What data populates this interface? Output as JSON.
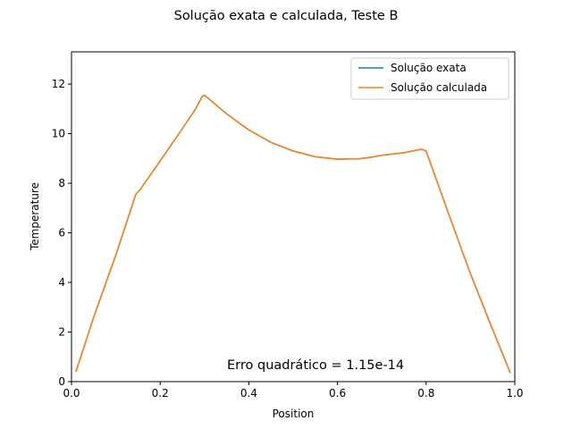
{
  "chart_data": {
    "type": "line",
    "title": "Solução exata e calculada, Teste B",
    "xlabel": "Position",
    "ylabel": "Temperature",
    "xlim": [
      0.0,
      1.0
    ],
    "ylim": [
      0.0,
      13.3
    ],
    "xticks": [
      0.0,
      0.2,
      0.4,
      0.6,
      0.8,
      1.0
    ],
    "xtick_labels": [
      "0.0",
      "0.2",
      "0.4",
      "0.6",
      "0.8",
      "1.0"
    ],
    "yticks": [
      0,
      2,
      4,
      6,
      8,
      10,
      12
    ],
    "ytick_labels": [
      "0",
      "2",
      "4",
      "6",
      "8",
      "10",
      "12"
    ],
    "grid": false,
    "legend_position": "top-right",
    "annotation": "Erro quadrático = 1.15e-14",
    "x": [
      0.01,
      0.05,
      0.1,
      0.145,
      0.155,
      0.2,
      0.25,
      0.28,
      0.295,
      0.3,
      0.31,
      0.35,
      0.4,
      0.45,
      0.5,
      0.55,
      0.6,
      0.65,
      0.68,
      0.7,
      0.72,
      0.75,
      0.78,
      0.79,
      0.8,
      0.85,
      0.9,
      0.95,
      0.99
    ],
    "series": [
      {
        "name": "Solução exata",
        "color": "#1f77b4",
        "values": [
          0.4,
          2.6,
          5.1,
          7.55,
          7.75,
          8.9,
          10.2,
          11.0,
          11.5,
          11.55,
          11.4,
          10.8,
          10.15,
          9.65,
          9.3,
          9.07,
          8.97,
          8.99,
          9.06,
          9.13,
          9.17,
          9.23,
          9.34,
          9.37,
          9.3,
          6.8,
          4.35,
          2.1,
          0.35
        ]
      },
      {
        "name": "Solução calculada",
        "color": "#ff7f0e",
        "values": [
          0.4,
          2.6,
          5.1,
          7.55,
          7.75,
          8.9,
          10.2,
          11.0,
          11.5,
          11.55,
          11.4,
          10.8,
          10.15,
          9.65,
          9.3,
          9.07,
          8.97,
          8.99,
          9.06,
          9.13,
          9.17,
          9.23,
          9.34,
          9.37,
          9.3,
          6.8,
          4.35,
          2.1,
          0.35
        ]
      }
    ]
  }
}
